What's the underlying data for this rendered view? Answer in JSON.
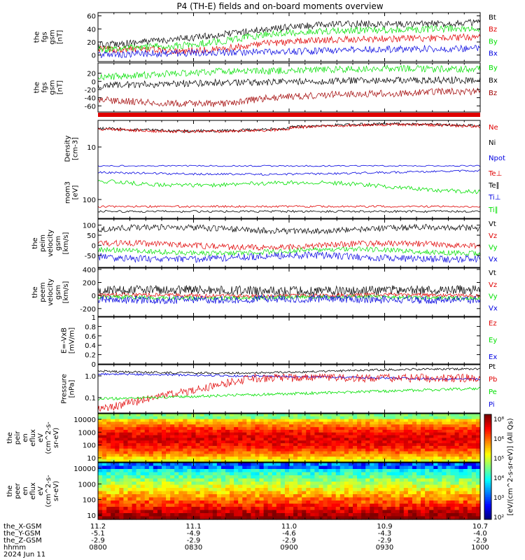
{
  "title": "P4 (TH-E) fields and on-board moments overview",
  "colors": {
    "black": "#000000",
    "red": "#e00000",
    "green": "#00e000",
    "blue": "#0000e0",
    "darkred": "#a00000",
    "panelbg": "#ffffff"
  },
  "chart_data": [
    {
      "type": "line",
      "name": "fgs-gsm",
      "ylabel": [
        "the",
        "fgs",
        "gsm",
        "[nT]"
      ],
      "ylim": [
        -10,
        65
      ],
      "yticks": [
        0,
        20,
        40,
        60
      ],
      "series": [
        {
          "name": "Bt",
          "color": "black",
          "base": [
            15,
            20,
            25,
            32,
            40,
            45,
            48,
            47,
            48,
            50
          ]
        },
        {
          "name": "Bz",
          "color": "red",
          "base": [
            8,
            10,
            6,
            10,
            18,
            22,
            24,
            25,
            26,
            28
          ]
        },
        {
          "name": "By",
          "color": "green",
          "base": [
            8,
            12,
            15,
            22,
            32,
            36,
            38,
            38,
            40,
            40
          ]
        },
        {
          "name": "Bx",
          "color": "blue",
          "base": [
            0,
            2,
            3,
            4,
            5,
            6,
            8,
            9,
            10,
            10
          ]
        }
      ]
    },
    {
      "type": "line",
      "name": "fgs-gsm-2",
      "ylabel": [
        "the",
        "fgs",
        "gsm",
        "[nT]"
      ],
      "ylim": [
        -75,
        45
      ],
      "yticks": [
        -60,
        -40,
        -20,
        0,
        20
      ],
      "series": [
        {
          "name": "By",
          "color": "green",
          "base": [
            10,
            15,
            20,
            25,
            25,
            28,
            30,
            32,
            30,
            30
          ]
        },
        {
          "name": "Bx",
          "color": "black",
          "base": [
            -10,
            -8,
            -5,
            -3,
            -2,
            0,
            2,
            2,
            3,
            3
          ]
        },
        {
          "name": "Bz",
          "color": "darkred",
          "base": [
            -45,
            -50,
            -55,
            -55,
            -40,
            -35,
            -30,
            -30,
            -25,
            -25
          ]
        }
      ]
    },
    {
      "type": "line",
      "name": "density",
      "ylabel": [
        "Density",
        "[cm-3]"
      ],
      "yticks_label": [
        "10"
      ],
      "series": [
        {
          "name": "Ne",
          "color": "red"
        },
        {
          "name": "Ni",
          "color": "black"
        },
        {
          "name": "Npot",
          "color": "blue"
        }
      ]
    },
    {
      "type": "line",
      "name": "temperature",
      "ylabel": [
        "mom3",
        "[eV]"
      ],
      "yticks_label": [
        "100"
      ],
      "series": [
        {
          "name": "Te⊥",
          "color": "red"
        },
        {
          "name": "Te∥",
          "color": "black"
        },
        {
          "name": "Ti⊥",
          "color": "blue"
        },
        {
          "name": "Ti∥",
          "color": "green"
        }
      ]
    },
    {
      "type": "line",
      "name": "peim-velocity",
      "ylabel": [
        "the",
        "peim",
        "velocity",
        "gsm",
        "[km/s]"
      ],
      "ylim": [
        -110,
        130
      ],
      "yticks": [
        -50,
        0,
        50,
        100
      ],
      "series": [
        {
          "name": "Vt",
          "color": "black"
        },
        {
          "name": "Vz",
          "color": "red"
        },
        {
          "name": "Vy",
          "color": "green"
        },
        {
          "name": "Vx",
          "color": "blue"
        }
      ]
    },
    {
      "type": "line",
      "name": "peem-velocity",
      "ylabel": [
        "the",
        "peem",
        "velocity",
        "gsm",
        "[km/s]"
      ],
      "ylim": [
        -320,
        420
      ],
      "yticks": [
        -200,
        0,
        200,
        400
      ],
      "series": [
        {
          "name": "Vt",
          "color": "black"
        },
        {
          "name": "Vz",
          "color": "red"
        },
        {
          "name": "Vy",
          "color": "green"
        },
        {
          "name": "Vx",
          "color": "blue"
        }
      ]
    },
    {
      "type": "line",
      "name": "efield",
      "ylabel": [
        "E=-VxB",
        "[mV/m]"
      ],
      "ylim": [
        0,
        1
      ],
      "yticks": [
        0.0,
        0.2,
        0.4,
        0.6,
        0.8,
        1.0
      ],
      "series": [
        {
          "name": "Ez",
          "color": "red"
        },
        {
          "name": "Ey",
          "color": "green"
        },
        {
          "name": "Ex",
          "color": "blue"
        }
      ]
    },
    {
      "type": "line",
      "name": "pressure",
      "ylabel": [
        "Pressure",
        "[nPa]"
      ],
      "ytick_labels": [
        "0.1",
        "1.0"
      ],
      "series": [
        {
          "name": "Pt",
          "color": "black"
        },
        {
          "name": "Pb",
          "color": "red"
        },
        {
          "name": "Pe",
          "color": "green"
        },
        {
          "name": "Pi",
          "color": "blue"
        }
      ]
    },
    {
      "type": "heatmap",
      "name": "peir",
      "ylabel": [
        "the",
        "peir",
        "en",
        "eflux",
        "eV",
        "(cm^2-s-",
        "sr-eV)"
      ],
      "ytick_labels": [
        "10",
        "100",
        "1000",
        "10000"
      ]
    },
    {
      "type": "heatmap",
      "name": "peer",
      "ylabel": [
        "the",
        "peer",
        "en",
        "eflux",
        "eV",
        "(cm^2-s-",
        "sr-eV)"
      ],
      "ytick_labels": [
        "10",
        "100",
        "1000",
        "10000"
      ]
    }
  ],
  "colorbar": {
    "label": "[eV/(cm^2-s-sr-eV)] (All Qs)",
    "ticks": [
      "10²",
      "10³",
      "10⁴",
      "10⁵",
      "10⁶",
      "10⁸"
    ]
  },
  "xaxis": {
    "rows": [
      {
        "label": "the_X-GSM",
        "values": [
          "11.2",
          "11.1",
          "11.0",
          "10.9",
          "10.7"
        ]
      },
      {
        "label": "the_Y-GSM",
        "values": [
          "-5.1",
          "-4.9",
          "-4.6",
          "-4.3",
          "-4.0"
        ]
      },
      {
        "label": "the_Z-GSM",
        "values": [
          "-2.9",
          "-2.9",
          "-2.9",
          "-2.9",
          "-2.9"
        ]
      },
      {
        "label": "hhmm",
        "values": [
          "0800",
          "0830",
          "0900",
          "0930",
          "1000"
        ]
      }
    ],
    "date": "2024 Jun 11"
  }
}
